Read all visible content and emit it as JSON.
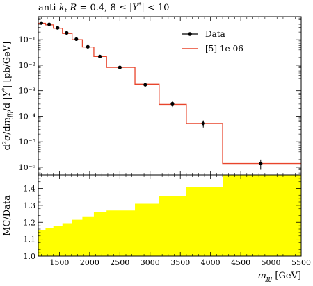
{
  "chart_data": [
    {
      "panel": "main",
      "type": "line",
      "title": "anti-k_t R = 0.4, 8 ≤ |Y*| < 10",
      "xlabel": "m_jjj [GeV]",
      "ylabel": "d²σ/dm_jjj/d|Y*| [pb/GeV]",
      "xlim": [
        1150,
        5500
      ],
      "ylim": [
        5e-07,
        0.8
      ],
      "yscale": "log",
      "y_ticks": [
        1e-06,
        1e-05,
        0.0001,
        0.001,
        0.01,
        0.1
      ],
      "y_tick_labels": [
        "10⁻⁶",
        "10⁻⁵",
        "10⁻⁴",
        "10⁻³",
        "10⁻²",
        "10⁻¹"
      ],
      "legend": {
        "position": "top-right",
        "entries": [
          {
            "label": "Data",
            "color": "#000000",
            "marker": "point"
          },
          {
            "label": "[5] 1e-06",
            "color": "#e8452c",
            "marker": "line"
          }
        ]
      },
      "series": [
        {
          "name": "Data",
          "type": "scatter",
          "x": [
            1200,
            1330,
            1470,
            1620,
            1780,
            1970,
            2170,
            2500,
            2920,
            3370,
            3880,
            4830
          ],
          "y": [
            0.45,
            0.4,
            0.29,
            0.185,
            0.105,
            0.053,
            0.022,
            0.0082,
            0.0017,
            0.00031,
            5.2e-05,
            1.4e-06
          ],
          "y_err_low": [
            0.04,
            0.035,
            0.025,
            0.016,
            0.01,
            0.005,
            0.002,
            0.0009,
            0.0003,
            8e-05,
            1.6e-05,
            6e-07
          ],
          "y_err_high": [
            0.04,
            0.035,
            0.025,
            0.016,
            0.01,
            0.005,
            0.002,
            0.0009,
            0.0003,
            8e-05,
            1.6e-05,
            6e-07
          ]
        },
        {
          "name": "[5] 1e-06",
          "type": "step",
          "bin_edges": [
            1150,
            1270,
            1400,
            1550,
            1710,
            1880,
            2070,
            2280,
            2750,
            3150,
            3600,
            4200,
            5500
          ],
          "values": [
            0.44,
            0.38,
            0.28,
            0.175,
            0.1,
            0.052,
            0.022,
            0.0082,
            0.0018,
            0.00029,
            5.2e-05,
            1.4e-06
          ]
        }
      ]
    },
    {
      "panel": "ratio",
      "type": "area",
      "xlabel": "m_jjj [GeV]",
      "ylabel": "MC/Data",
      "xlim": [
        1150,
        5500
      ],
      "ylim": [
        1.0,
        1.48
      ],
      "x_ticks": [
        1500,
        2000,
        2500,
        3000,
        3500,
        4000,
        4500,
        5000,
        5500
      ],
      "y_ticks": [
        1.0,
        1.1,
        1.2,
        1.3,
        1.4
      ],
      "y_tick_labels": [
        "1.0",
        "1.1",
        "1.2",
        "1.3",
        "1.4"
      ],
      "band_color": "#ffff00",
      "series": [
        {
          "type": "step",
          "bin_edges": [
            1150,
            1270,
            1400,
            1550,
            1710,
            1880,
            2070,
            2280,
            2750,
            3150,
            3600,
            4200,
            5500
          ],
          "values": [
            1.155,
            1.165,
            1.18,
            1.195,
            1.215,
            1.235,
            1.26,
            1.27,
            1.31,
            1.355,
            1.41,
            1.5
          ],
          "reference": 1.0
        }
      ]
    }
  ]
}
